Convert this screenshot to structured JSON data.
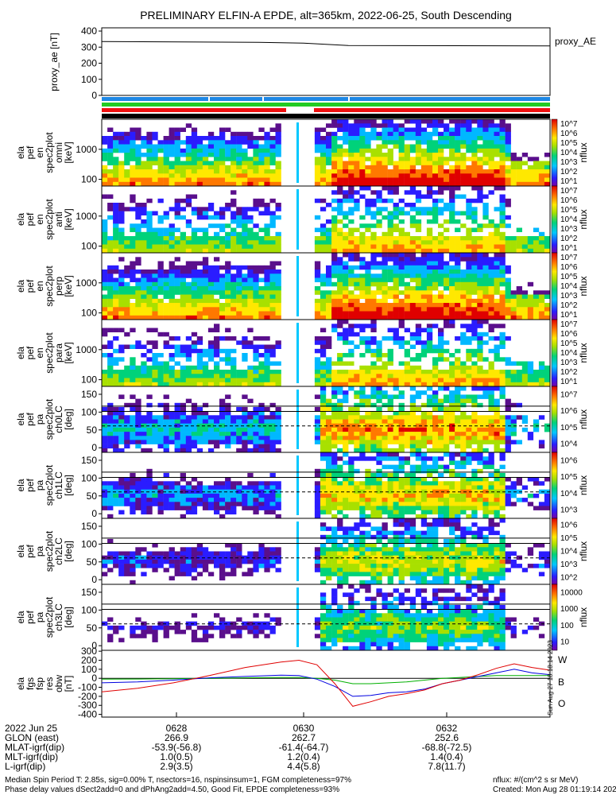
{
  "title": "PRELIMINARY ELFIN-A EPDE, alt=365km, 2022-06-25, South Descending",
  "proxy_panel": {
    "ylabel": "proxy_ae [nT]",
    "legend": "proxy_AE",
    "yticks": [
      "400",
      "300",
      "200",
      "100",
      "0"
    ]
  },
  "energy_panels": [
    {
      "label": [
        "ela",
        "pef",
        "en",
        "spec2plot",
        "omni",
        "[keV]"
      ],
      "yticks": [
        "1000",
        "100"
      ]
    },
    {
      "label": [
        "ela",
        "pef",
        "en",
        "spec2plot",
        "anti",
        "[keV]"
      ],
      "yticks": [
        "1000",
        "100"
      ]
    },
    {
      "label": [
        "ela",
        "pef",
        "en",
        "spec2plot",
        "perp",
        "[keV]"
      ],
      "yticks": [
        "1000",
        "100"
      ]
    },
    {
      "label": [
        "ela",
        "pef",
        "en",
        "spec2plot",
        "para",
        "[keV]"
      ],
      "yticks": [
        "1000",
        "100"
      ]
    }
  ],
  "pa_panels": [
    {
      "label": [
        "ela",
        "pef",
        "pa",
        "spec2plot",
        "ch0LC",
        "[deg]"
      ],
      "yticks": [
        "150",
        "100",
        "50",
        "0"
      ]
    },
    {
      "label": [
        "ela",
        "pef",
        "pa",
        "spec2plot",
        "ch1LC",
        "[deg]"
      ],
      "yticks": [
        "150",
        "100",
        "50",
        "0"
      ]
    },
    {
      "label": [
        "ela",
        "pef",
        "pa",
        "spec2plot",
        "ch2LC",
        "[deg]"
      ],
      "yticks": [
        "150",
        "100",
        "50",
        "0"
      ]
    },
    {
      "label": [
        "ela",
        "pef",
        "pa",
        "spec2plot",
        "ch3LC",
        "[deg]"
      ],
      "yticks": [
        "150",
        "100",
        "50",
        "0"
      ]
    }
  ],
  "colorbars": [
    {
      "ticks": [
        "10^7",
        "10^6",
        "10^5",
        "10^4",
        "10^3",
        "10^2",
        "10^1"
      ],
      "label": "nflux"
    },
    {
      "ticks": [
        "10^7",
        "10^6",
        "10^5",
        "10^4",
        "10^3",
        "10^2",
        "10^1"
      ],
      "label": "nflux"
    },
    {
      "ticks": [
        "10^7",
        "10^6",
        "10^5",
        "10^4",
        "10^3",
        "10^2",
        "10^1"
      ],
      "label": "nflux"
    },
    {
      "ticks": [
        "10^7",
        "10^6",
        "10^5",
        "10^4",
        "10^3",
        "10^2",
        "10^1"
      ],
      "label": "nflux"
    },
    {
      "ticks": [
        "10^7",
        "10^6",
        "10^5",
        "10^4"
      ],
      "label": "nflux"
    },
    {
      "ticks": [
        "10^6",
        "10^5",
        "10^4",
        "10^3"
      ],
      "label": "nflux"
    },
    {
      "ticks": [
        "10^6",
        "10^5",
        "10^4",
        "10^3",
        "10^2"
      ],
      "label": "nflux"
    },
    {
      "ticks": [
        "10000",
        "1000",
        "100",
        "10"
      ],
      "label": "nflux"
    }
  ],
  "field_panel": {
    "ylabel": [
      "ela",
      "fgs",
      "fsp",
      "res",
      "obw",
      "[nT]"
    ],
    "yticks": [
      "300",
      "200",
      "100",
      "0",
      "-100",
      "-200",
      "-300",
      "-400"
    ],
    "legend": [
      {
        "name": "W",
        "color": "#e00000"
      },
      {
        "name": "B",
        "color": "#00b000"
      },
      {
        "name": "O",
        "color": "#0000e0"
      }
    ],
    "side_note": "Sun Aug 27 18:18:14 2023"
  },
  "chart_data": {
    "type": "line",
    "title": "PRELIMINARY ELFIN-A EPDE, alt=365km, 2022-06-25, South Descending",
    "x_time_ticks": [
      "0628",
      "0630",
      "0632"
    ],
    "proxy_ae": {
      "ylim": [
        0,
        420
      ],
      "x": [
        0,
        0.35,
        0.45,
        0.55,
        1.0
      ],
      "y": [
        335,
        330,
        325,
        310,
        308
      ]
    },
    "field": {
      "ylim": [
        -430,
        310
      ],
      "x": [
        0,
        0.08,
        0.16,
        0.24,
        0.32,
        0.4,
        0.44,
        0.48,
        0.52,
        0.56,
        0.6,
        0.64,
        0.68,
        0.72,
        0.76,
        0.8,
        0.84,
        0.88,
        0.92,
        0.96,
        1.0
      ],
      "red": [
        -150,
        -110,
        -50,
        30,
        120,
        180,
        200,
        150,
        -60,
        -310,
        -260,
        -200,
        -170,
        -130,
        -60,
        -20,
        40,
        110,
        160,
        120,
        90
      ],
      "blue": [
        -50,
        -40,
        -20,
        5,
        20,
        35,
        30,
        -10,
        -90,
        -200,
        -190,
        -160,
        -150,
        -120,
        -60,
        -20,
        20,
        60,
        100,
        60,
        40
      ],
      "green": [
        -10,
        -8,
        -5,
        0,
        5,
        10,
        10,
        0,
        -20,
        -60,
        -60,
        -50,
        -40,
        -20,
        0,
        10,
        20,
        30,
        30,
        30,
        30
      ]
    }
  },
  "footer": {
    "rows": [
      {
        "label": "2022 Jun 25",
        "values": [
          "0628",
          "0630",
          "0632"
        ]
      },
      {
        "label": "GLON (east)",
        "values": [
          "266.9",
          "262.7",
          "252.6"
        ]
      },
      {
        "label": "MLAT-igrf(dip)",
        "values": [
          "-53.9(-56.8)",
          "-61.4(-64.7)",
          "-68.8(-72.5)"
        ]
      },
      {
        "label": "MLT-igrf(dip)",
        "values": [
          "1.0(0.5)",
          "1.2(0.4)",
          "1.4(0.4)"
        ]
      },
      {
        "label": "L-igrf(dip)",
        "values": [
          "2.9(3.5)",
          "4.4(5.8)",
          "7.8(11.7)"
        ]
      }
    ],
    "note_left_1": "Median Spin Period T: 2.85s, sig=0.00% T, nsectors=16, nspinsinsum=1, FGM completeness=97%",
    "note_left_2": "Phase delay values dSect2add=0 and dPhAng2add=4.50, Good Fit, EPDE completeness=93%",
    "note_right_1": "nflux: #/(cm^2 s sr MeV)",
    "note_right_2": "Created: Mon Aug 28 01:19:14 2023"
  }
}
